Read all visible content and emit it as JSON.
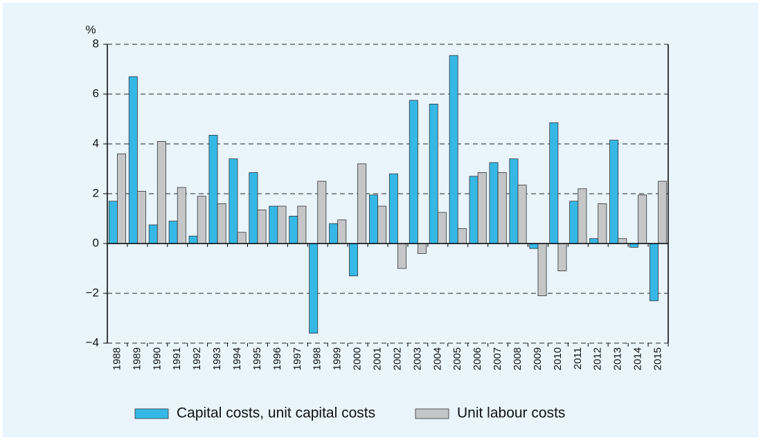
{
  "chart_data": {
    "type": "bar",
    "y_label": "%",
    "categories": [
      "1988",
      "1989",
      "1990",
      "1991",
      "1992",
      "1993",
      "1994",
      "1995",
      "1996",
      "1997",
      "1998",
      "1999",
      "2000",
      "2001",
      "2002",
      "2003",
      "2004",
      "2005",
      "2006",
      "2007",
      "2008",
      "2009",
      "2010",
      "2011",
      "2012",
      "2013",
      "2014",
      "2015"
    ],
    "series": [
      {
        "name": "Capital costs, unit capital costs",
        "color": "#36b8e6",
        "values": [
          1.7,
          6.7,
          0.75,
          0.9,
          0.3,
          4.35,
          3.4,
          2.85,
          1.5,
          1.1,
          -3.6,
          0.8,
          -1.3,
          1.95,
          2.8,
          5.75,
          5.6,
          7.55,
          2.7,
          3.25,
          3.4,
          -0.2,
          4.85,
          1.7,
          0.2,
          4.15,
          -0.15,
          -2.3
        ]
      },
      {
        "name": "Unit labour costs",
        "color": "#c4c6c8",
        "values": [
          3.6,
          2.1,
          4.1,
          2.25,
          1.9,
          1.6,
          0.45,
          1.35,
          1.5,
          1.5,
          2.5,
          0.95,
          3.2,
          1.5,
          -1.0,
          -0.4,
          1.25,
          0.6,
          2.85,
          2.85,
          2.35,
          -2.1,
          -1.1,
          2.2,
          1.6,
          0.2,
          1.95,
          2.5
        ]
      }
    ],
    "ylim": [
      -4,
      8
    ],
    "yticks": [
      {
        "value": -4,
        "label": "−4"
      },
      {
        "value": -2,
        "label": "−2"
      },
      0,
      2,
      4,
      6,
      8
    ],
    "grid": true,
    "legend": "bottom"
  }
}
